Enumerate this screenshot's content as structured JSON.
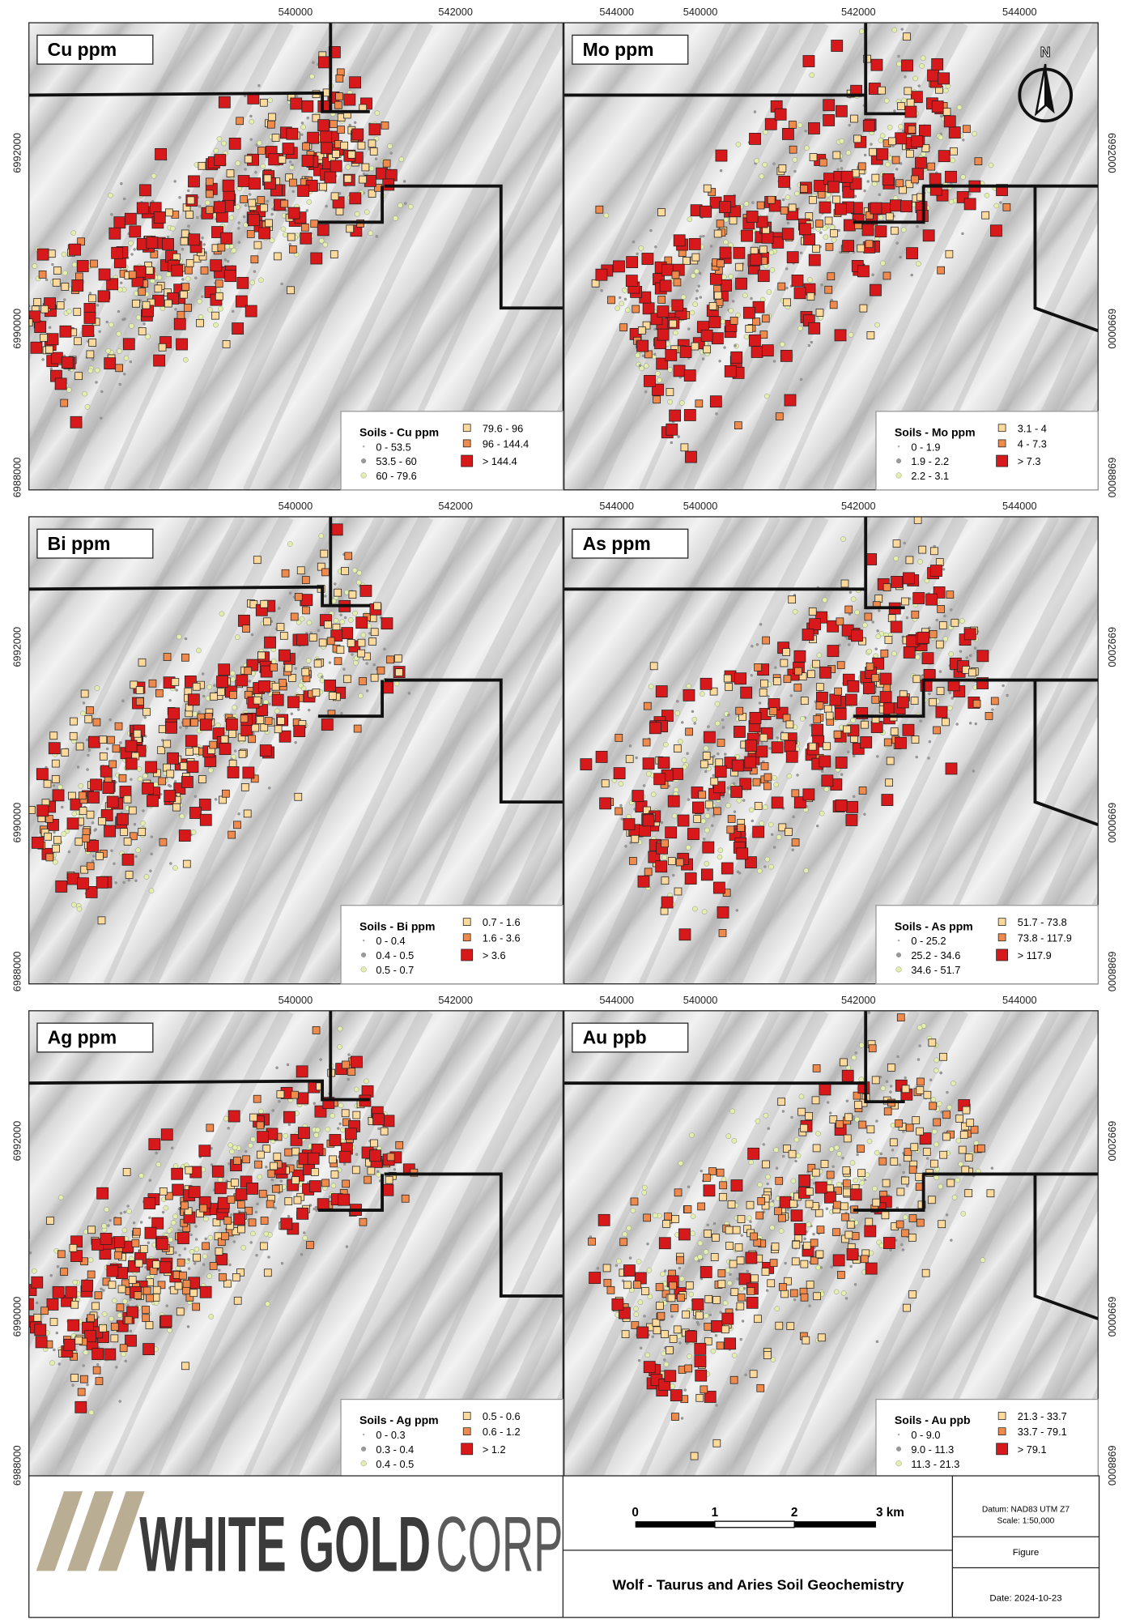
{
  "panels": [
    {
      "title": "Cu ppm",
      "legend_title": "Soils - Cu ppm",
      "legend": [
        "0 - 53.5",
        "53.5 - 60",
        "60 - 79.6",
        "79.6 - 96",
        "96 - 144.4",
        "> 144.4"
      ]
    },
    {
      "title": "Mo ppm",
      "legend_title": "Soils - Mo ppm",
      "legend": [
        "0 - 1.9",
        "1.9 - 2.2",
        "2.2 - 3.1",
        "3.1 - 4",
        "4 - 7.3",
        "> 7.3"
      ]
    },
    {
      "title": "Bi ppm",
      "legend_title": "Soils - Bi ppm",
      "legend": [
        "0 - 0.4",
        "0.4 - 0.5",
        "0.5 - 0.7",
        "0.7 - 1.6",
        "1.6 - 3.6",
        "> 3.6"
      ]
    },
    {
      "title": "As ppm",
      "legend_title": "Soils - As ppm",
      "legend": [
        "0 - 25.2",
        "25.2 - 34.6",
        "34.6 - 51.7",
        "51.7 - 73.8",
        "73.8 - 117.9",
        "> 117.9"
      ]
    },
    {
      "title": "Ag ppm",
      "legend_title": "Soils - Ag ppm",
      "legend": [
        "0 - 0.3",
        "0.3 - 0.4",
        "0.4 - 0.5",
        "0.5 - 0.6",
        "0.6 - 1.2",
        "> 1.2"
      ]
    },
    {
      "title": "Au ppb",
      "legend_title": "Soils - Au ppb",
      "legend": [
        "0 - 9.0",
        "9.0 - 11.3",
        "11.3 - 21.3",
        "21.3 - 33.7",
        "33.7 - 79.1",
        "> 79.1"
      ]
    }
  ],
  "x_ticks": [
    "540000",
    "542000",
    "544000"
  ],
  "y_ticks": [
    "6992000",
    "6990000",
    "6988000"
  ],
  "north": "N",
  "logo": {
    "bold": "WHITE GOLD",
    "light": "CORP"
  },
  "scale_bar": [
    "0",
    "1",
    "2",
    "3 km"
  ],
  "datum": "Datum: NAD83 UTM Z7",
  "scale": "Scale: 1:50,000",
  "figure": "Figure",
  "title": "Wolf - Taurus and Aries Soil Geochemistry",
  "date": "Date: 2024-10-23"
}
